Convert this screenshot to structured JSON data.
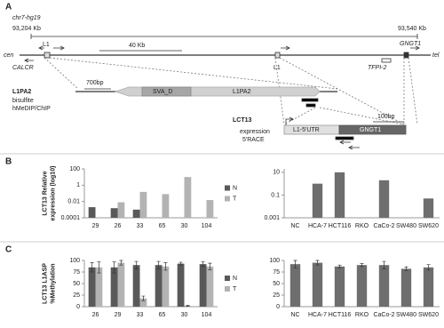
{
  "panel_labels": [
    "A",
    "B",
    "C"
  ],
  "panel_a": {
    "assembly": "chr7-hg19",
    "start": "93,204 Kb",
    "end": "93,540 Kb",
    "cen": "cen",
    "tel": "tel",
    "scale_top": "40 Kb",
    "l1_left": "L1",
    "l1_mid": "L1",
    "calcr": "CALCR",
    "tfpi2": "TFPI-2",
    "gngt1_top": "GNGT1",
    "l1pa2_title": "L1PA2",
    "l1pa2_methods": [
      "bisulfite",
      "hMeDIP/ChIP"
    ],
    "scale_l1pa2": "700bp",
    "sva": "SVA_D",
    "l1pa2_box": "L1PA2",
    "lct13_title": "LCT13",
    "lct13_methods": [
      "expression",
      "5'RACE"
    ],
    "scale_lct13": "100bp",
    "utr": "L1-5'UTR",
    "gngt1_box": "GNGT1"
  },
  "chart_data": [
    {
      "type": "bar",
      "ylabel": [
        "LCT13 Relative",
        "expression (log10)"
      ],
      "log_scale": true,
      "categories": [
        "29",
        "26",
        "33",
        "65",
        "30",
        "104"
      ],
      "series": [
        {
          "name": "N",
          "color": "#595959",
          "values": [
            0.002,
            0.0015,
            0.001,
            null,
            null,
            null
          ]
        },
        {
          "name": "T",
          "color": "#b3b3b3",
          "values": [
            null,
            0.008,
            0.15,
            0.08,
            10,
            0.015
          ]
        }
      ],
      "ylim": [
        0.0001,
        100
      ],
      "yticks": [
        0.0001,
        0.01,
        1,
        100
      ],
      "legend": "right"
    },
    {
      "type": "bar",
      "log_scale": true,
      "categories": [
        "NC",
        "HCA-7",
        "HCT116",
        "RKO",
        "CaCo-2",
        "SW480",
        "SW620"
      ],
      "values": [
        null,
        1,
        10,
        null,
        2,
        null,
        0.05
      ],
      "color": "#6e6e6e",
      "ylim": [
        0.001,
        20
      ],
      "yticks": [
        0.001,
        0.1,
        10
      ]
    },
    {
      "type": "bar",
      "ylabel": [
        "LCT13 L1ASP",
        "%Methylation"
      ],
      "categories": [
        "26",
        "29",
        "33",
        "65",
        "30",
        "104"
      ],
      "series": [
        {
          "name": "N",
          "color": "#595959",
          "values": [
            85,
            85,
            90,
            90,
            93,
            92
          ],
          "errors": [
            10,
            12,
            8,
            8,
            3,
            5
          ]
        },
        {
          "name": "T",
          "color": "#b3b3b3",
          "values": [
            85,
            95,
            18,
            87,
            2,
            87
          ],
          "errors": [
            12,
            5,
            5,
            8,
            1,
            7
          ]
        }
      ],
      "ylim": [
        0,
        100
      ],
      "yticks": [
        0,
        25,
        50,
        75,
        100
      ],
      "legend": "right"
    },
    {
      "type": "bar",
      "categories": [
        "NC",
        "HCA-7",
        "HCT116",
        "RKO",
        "CaCo-2",
        "SW480",
        "SW620"
      ],
      "values": [
        92,
        95,
        87,
        90,
        90,
        82,
        85
      ],
      "errors": [
        8,
        5,
        3,
        3,
        8,
        4,
        6
      ],
      "color": "#6e6e6e",
      "ylim": [
        0,
        100
      ],
      "yticks": [
        0,
        25,
        50,
        75,
        100
      ]
    }
  ]
}
